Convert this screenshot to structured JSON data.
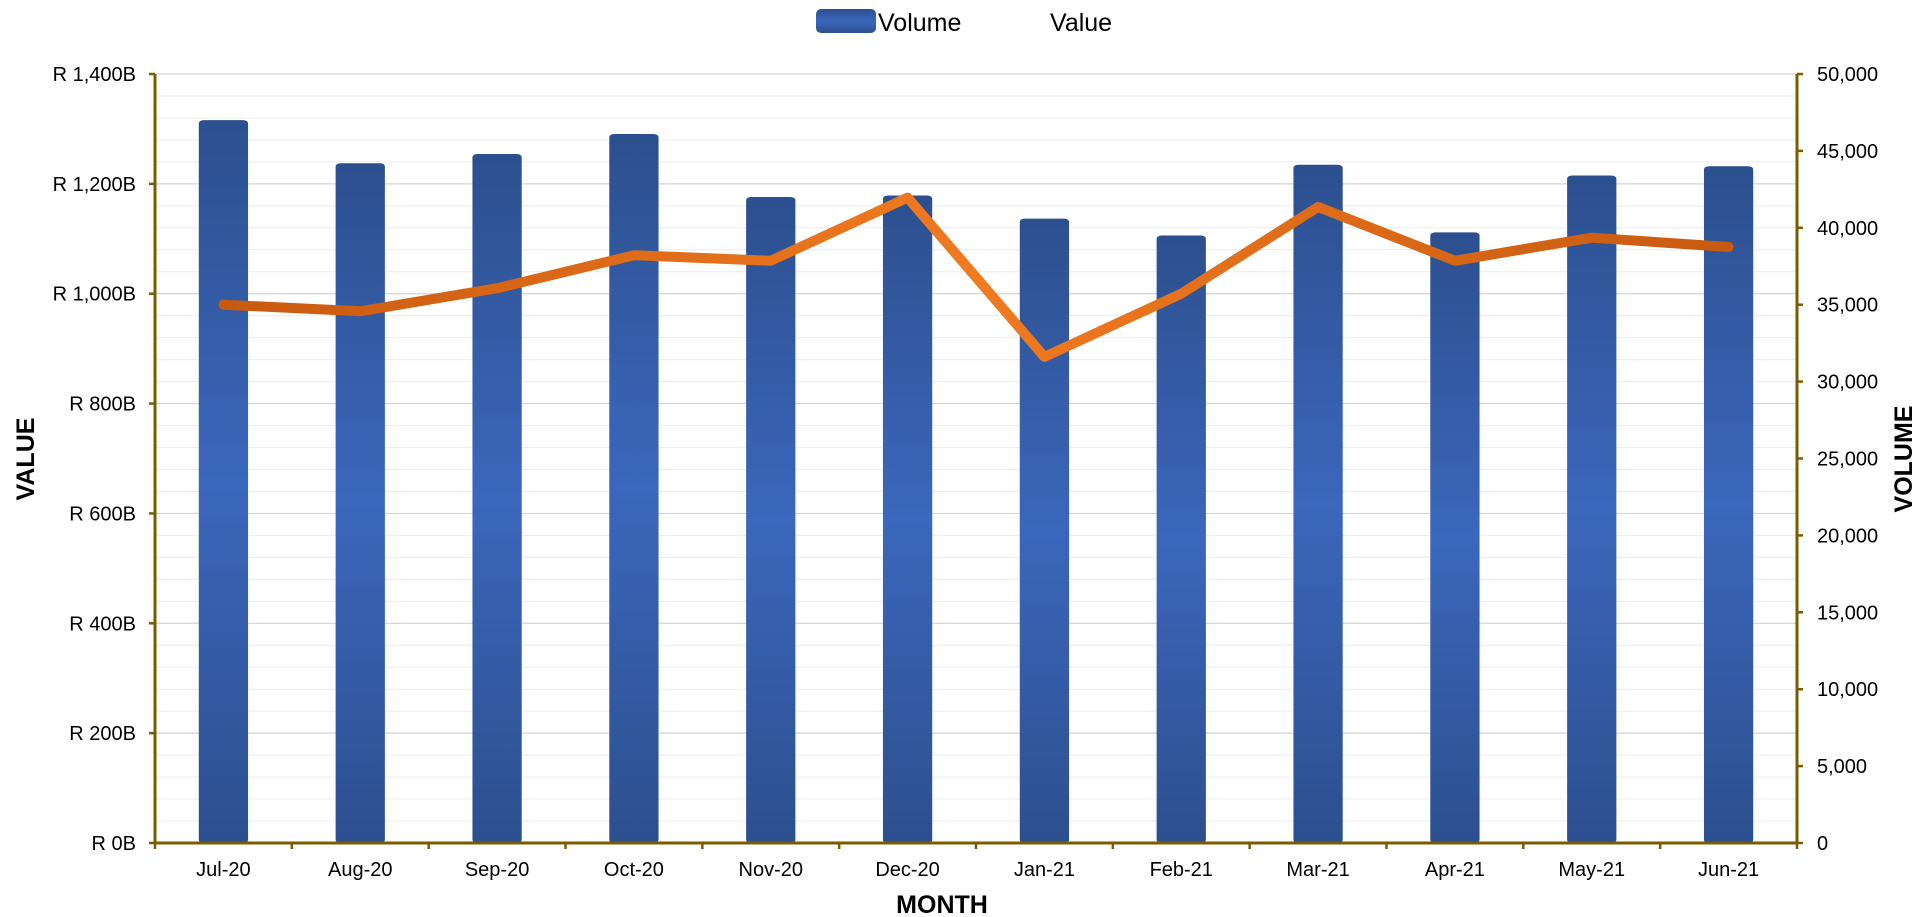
{
  "chart_data": {
    "type": "bar",
    "categories": [
      "Jul-20",
      "Aug-20",
      "Sep-20",
      "Oct-20",
      "Nov-20",
      "Dec-20",
      "Jan-21",
      "Feb-21",
      "Mar-21",
      "Apr-21",
      "May-21",
      "Jun-21"
    ],
    "series": [
      {
        "name": "Volume",
        "chart_type": "bar",
        "axis": "right",
        "color": "#3560b0",
        "values": [
          47000,
          44200,
          44800,
          46100,
          42000,
          42100,
          40600,
          39500,
          44100,
          39700,
          43400,
          44000
        ]
      },
      {
        "name": "Value",
        "chart_type": "line",
        "axis": "left",
        "color": "#e86c1a",
        "values": [
          980,
          968,
          1010,
          1070,
          1060,
          1175,
          885,
          1000,
          1158,
          1060,
          1102,
          1085
        ]
      }
    ],
    "xlabel": "MONTH",
    "ylabel": "VALUE",
    "y2label": "VOLUME",
    "ylim": [
      0,
      1400
    ],
    "y2lim": [
      0,
      50000
    ],
    "y_ticks": [
      "R 0B",
      "R 200B",
      "R 400B",
      "R 600B",
      "R 800B",
      "R 1,000B",
      "R 1,200B",
      "R 1,400B"
    ],
    "y2_ticks": [
      "0",
      "5,000",
      "10,000",
      "15,000",
      "20,000",
      "25,000",
      "30,000",
      "35,000",
      "40,000",
      "45,000",
      "50,000"
    ],
    "legend_position": "top-center",
    "grid": true,
    "axis_color": "#7a5c00"
  }
}
